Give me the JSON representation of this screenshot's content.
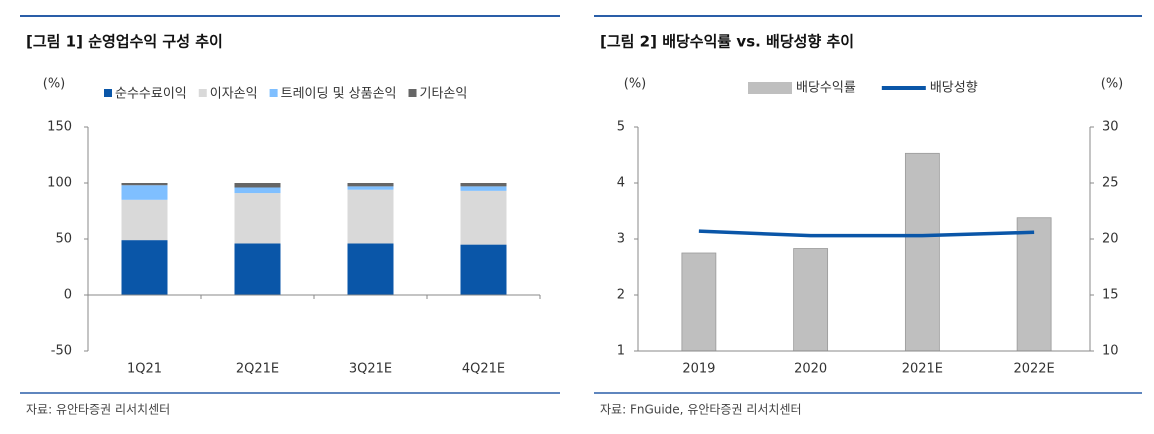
{
  "chart_data": [
    {
      "type": "stacked_bar",
      "title": "[그림 1] 순영업수익 구성 추이",
      "y_label": "(%)",
      "categories": [
        "1Q21",
        "2Q21E",
        "3Q21E",
        "4Q21E"
      ],
      "series": [
        {
          "name": "순수수료이익",
          "color": "#0a56a8",
          "values": [
            49,
            46,
            46,
            45
          ]
        },
        {
          "name": "이자손익",
          "color": "#d9d9d9",
          "values": [
            36,
            45,
            48,
            48
          ]
        },
        {
          "name": "트레이딩 및 상품손익",
          "color": "#7fbfff",
          "values": [
            13,
            5,
            3,
            4
          ]
        },
        {
          "name": "기타손익",
          "color": "#666666",
          "values": [
            2,
            4,
            3,
            3
          ]
        }
      ],
      "ylim": [
        -50,
        150
      ],
      "yticks": [
        -50,
        0,
        50,
        100,
        150
      ],
      "source": "자료: 유안타증권 리서치센터"
    },
    {
      "type": "bar_line",
      "title": "[그림 2] 배당수익률 vs. 배당성향 추이",
      "y_label": "(%)",
      "y2_label": "(%)",
      "categories": [
        "2019",
        "2020",
        "2021E",
        "2022E"
      ],
      "series": [
        {
          "name": "배당수익률",
          "color": "#bfbfbf",
          "values": [
            2.75,
            2.83,
            4.53,
            3.38
          ]
        },
        {
          "name": "배당성향",
          "color": "#0a56a8",
          "axis": "y2",
          "values": [
            20.7,
            20.3,
            20.3,
            20.6
          ]
        }
      ],
      "ylim": [
        1,
        5
      ],
      "yticks": [
        1,
        2,
        3,
        4,
        5
      ],
      "y2lim": [
        10,
        30
      ],
      "y2ticks": [
        10,
        15,
        20,
        25,
        30
      ],
      "source": "자료: FnGuide, 유안타증권 리서치센터"
    }
  ]
}
